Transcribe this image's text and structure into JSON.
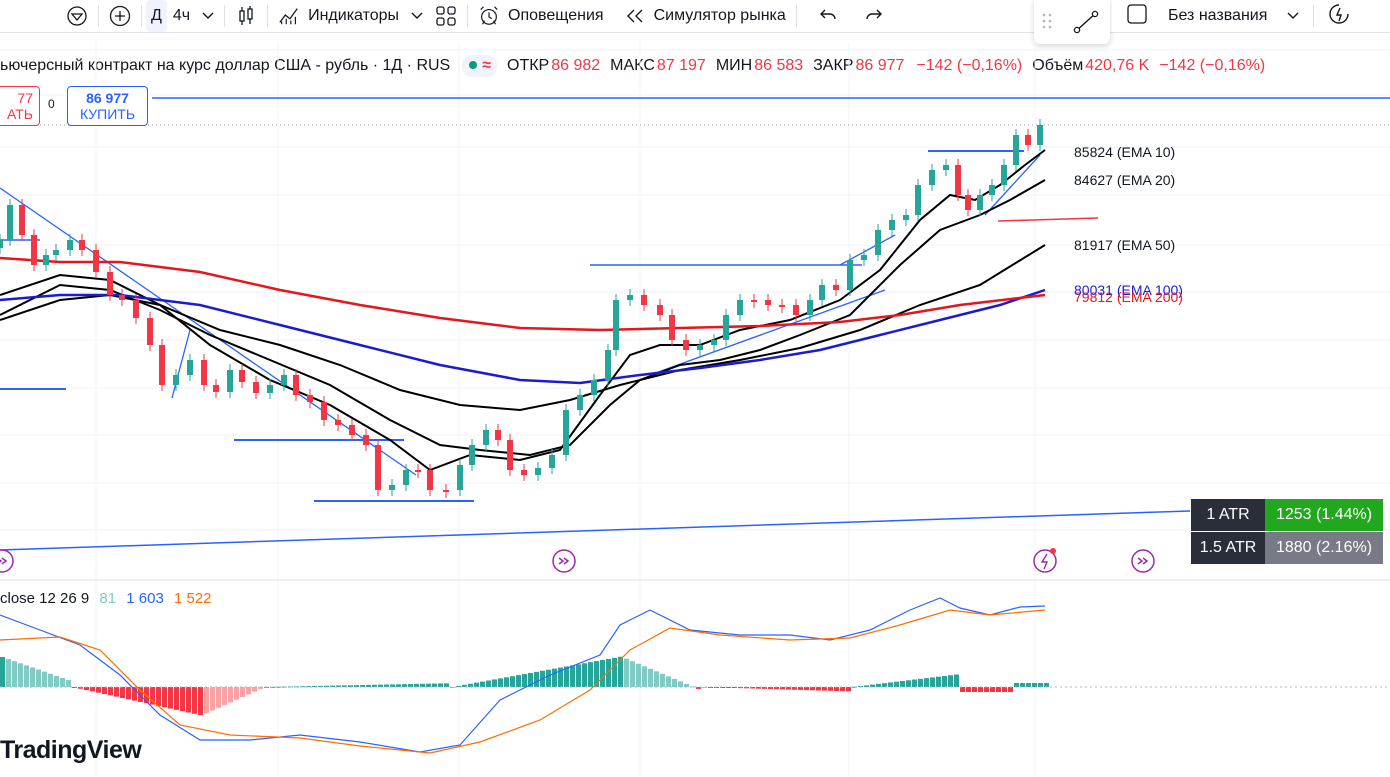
{
  "toolbar": {
    "interval_day": "Д",
    "interval_4h": "4ч",
    "indicators": "Индикаторы",
    "alerts": "Оповещения",
    "replay": "Симулятор рынка",
    "layout_name": "Без названия"
  },
  "legend": {
    "title": "ьючерсный контракт на курс доллар США - рубль · 1Д · RUS",
    "open_label": "ОТКР",
    "open": "86 982",
    "high_label": "МАКС",
    "high": "87 197",
    "low_label": "МИН",
    "low": "86 583",
    "close_label": "ЗАКР",
    "close": "86 977",
    "change": "−142 (−0,16%)",
    "volume_label": "Объём",
    "volume": "420,76 K",
    "volume_change": "−142 (−0,16%)"
  },
  "trade": {
    "sell_price": "77",
    "sell_label": "АТЬ",
    "spread": "0",
    "buy_price": "86 977",
    "buy_label": "КУПИТЬ"
  },
  "ema_labels": [
    {
      "value": "85824",
      "name": "(EMA 10)",
      "color": "#131722"
    },
    {
      "value": "84627",
      "name": "(EMA 20)",
      "color": "#131722"
    },
    {
      "value": "81917",
      "name": "(EMA 50)",
      "color": "#131722"
    },
    {
      "value": "80031",
      "name": "(EMA 100)",
      "color": "#1c1ccf"
    },
    {
      "value": "79812",
      "name": "(EMA 200)",
      "color": "#e3171d"
    }
  ],
  "atr": [
    {
      "label": "1 ATR",
      "value": "1253 (1.44%)",
      "color": "#22a81e"
    },
    {
      "label": "1.5 ATR",
      "value": "1880 (2.16%)",
      "color": "#787b86"
    }
  ],
  "macd": {
    "params": "close 12 26 9",
    "hist": "81",
    "macd": "1 603",
    "signal": "1 522",
    "hist_color": "#80cbc4",
    "macd_color": "#2962ff",
    "signal_color": "#ff6d00"
  },
  "logo": "TradingView",
  "colors": {
    "up": "#26a69a",
    "down": "#f23645",
    "ema_short": "#000000",
    "ema_100": "#1c1ccf",
    "ema_200": "#e3171d",
    "trendline": "#2962ff"
  }
}
